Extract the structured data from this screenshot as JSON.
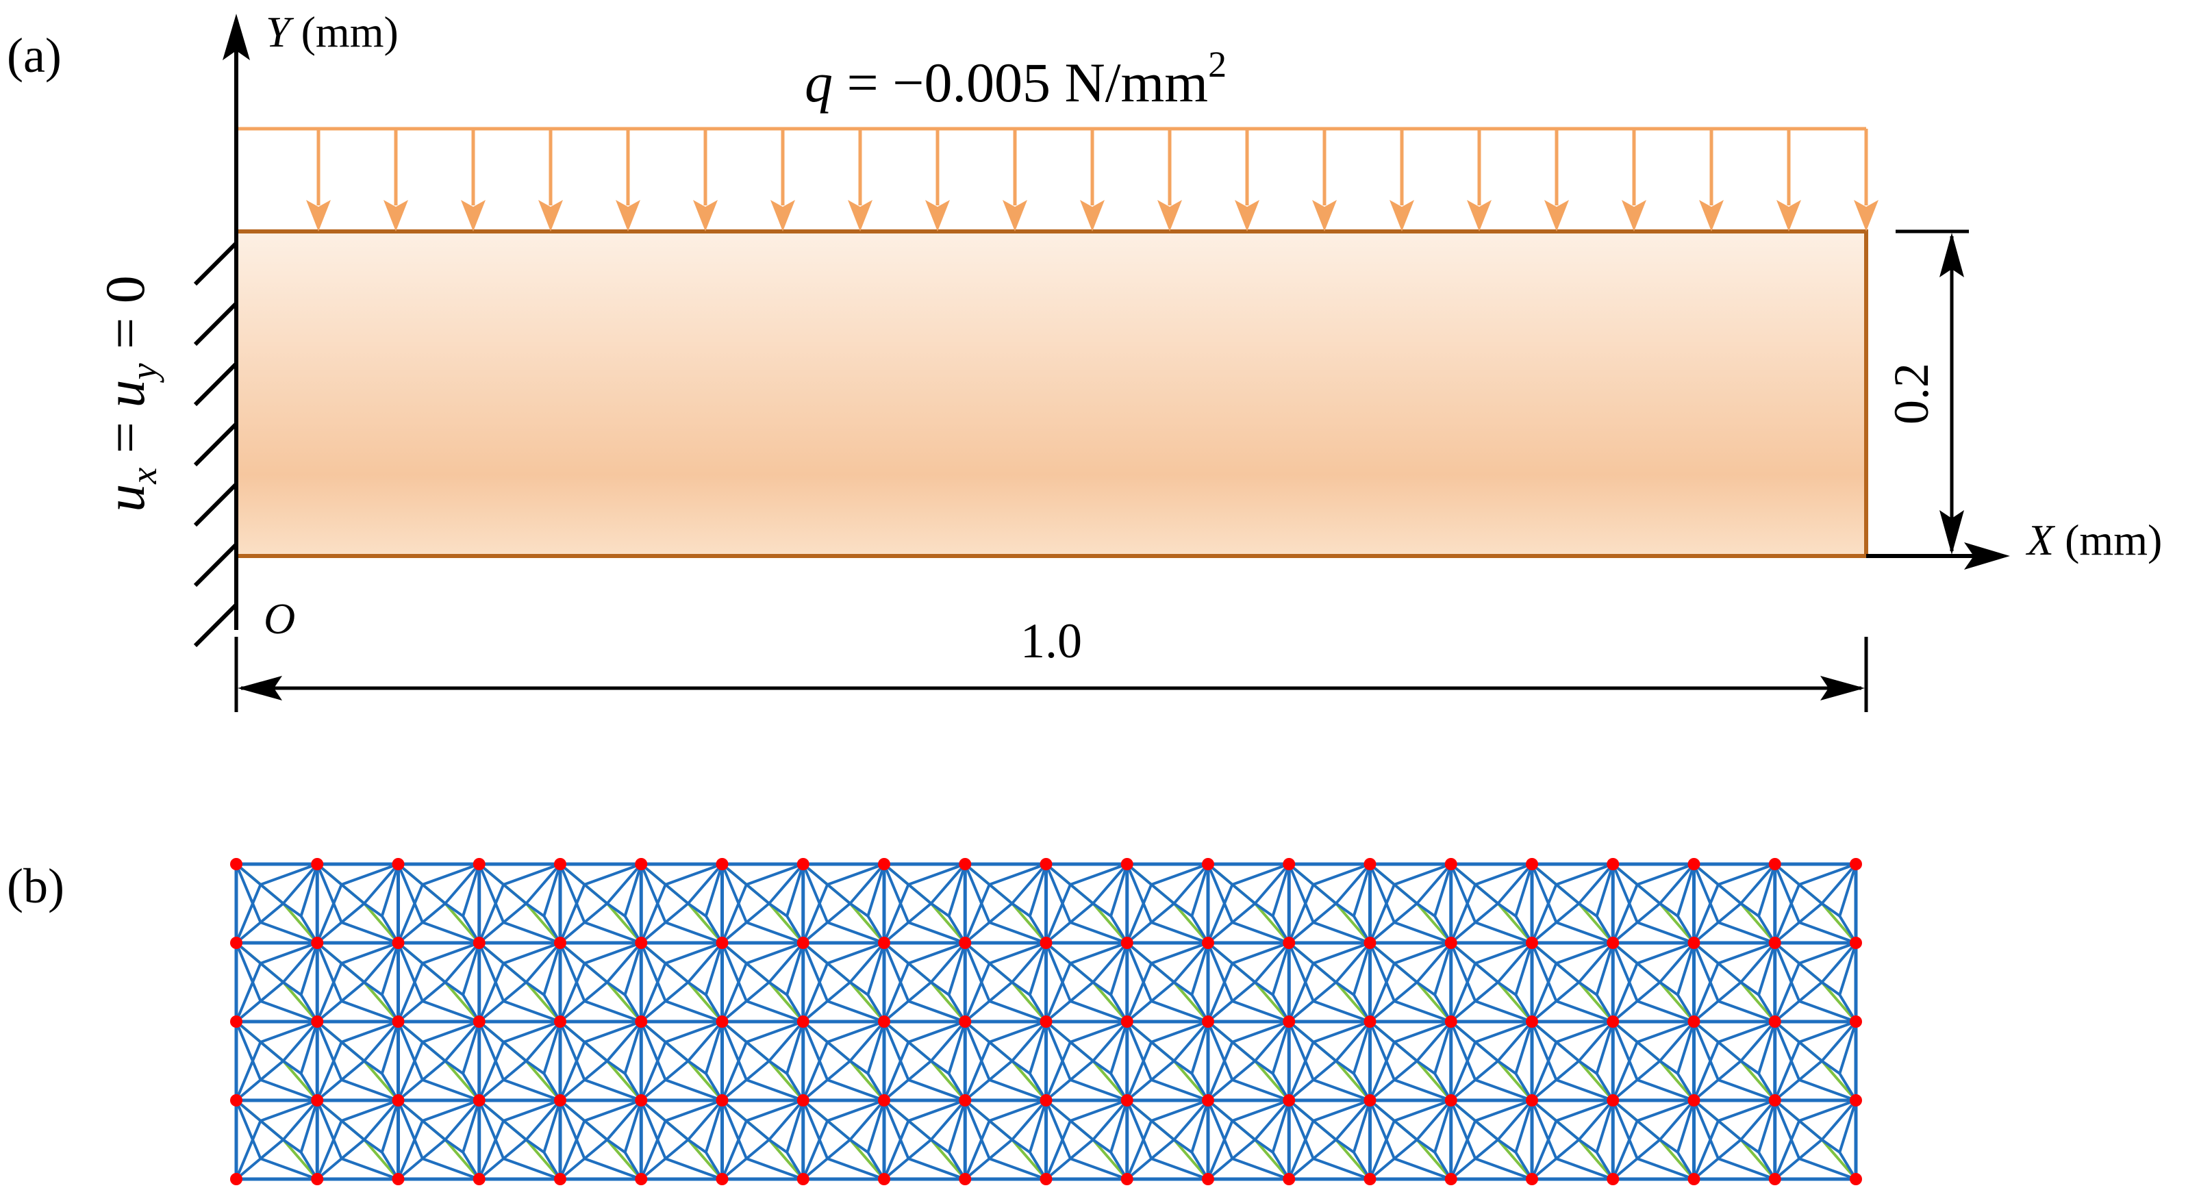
{
  "panels": {
    "a": {
      "label": "(a)",
      "y_axis": {
        "letter": "Y",
        "unit": " (mm)"
      },
      "x_axis": {
        "letter": "X",
        "unit": " (mm)"
      },
      "origin": "O",
      "load": {
        "symbol": "q",
        "value": " = −0.005 N/mm",
        "exponent": "2"
      },
      "boundary_condition": {
        "u": "u",
        "sub_x": "x",
        "eq": " = ",
        "sub_y": "y",
        "zero": " = 0"
      },
      "width_dimension": "1.0",
      "height_dimension": "0.2",
      "load_arrow_count": 21,
      "colors": {
        "load_arrows": "#f4a460",
        "beam_outline": "#b5651d",
        "beam_fill_light": "#fdf0e4",
        "beam_fill_dark": "#f6c79f",
        "axes": "#000000"
      }
    },
    "b": {
      "label": "(b)",
      "mesh": {
        "columns": 20,
        "rows": 4
      },
      "colors": {
        "bars": "#1f6fbf",
        "diagonal_bars": "#7fc241",
        "nodes": "#ff0000"
      }
    }
  }
}
